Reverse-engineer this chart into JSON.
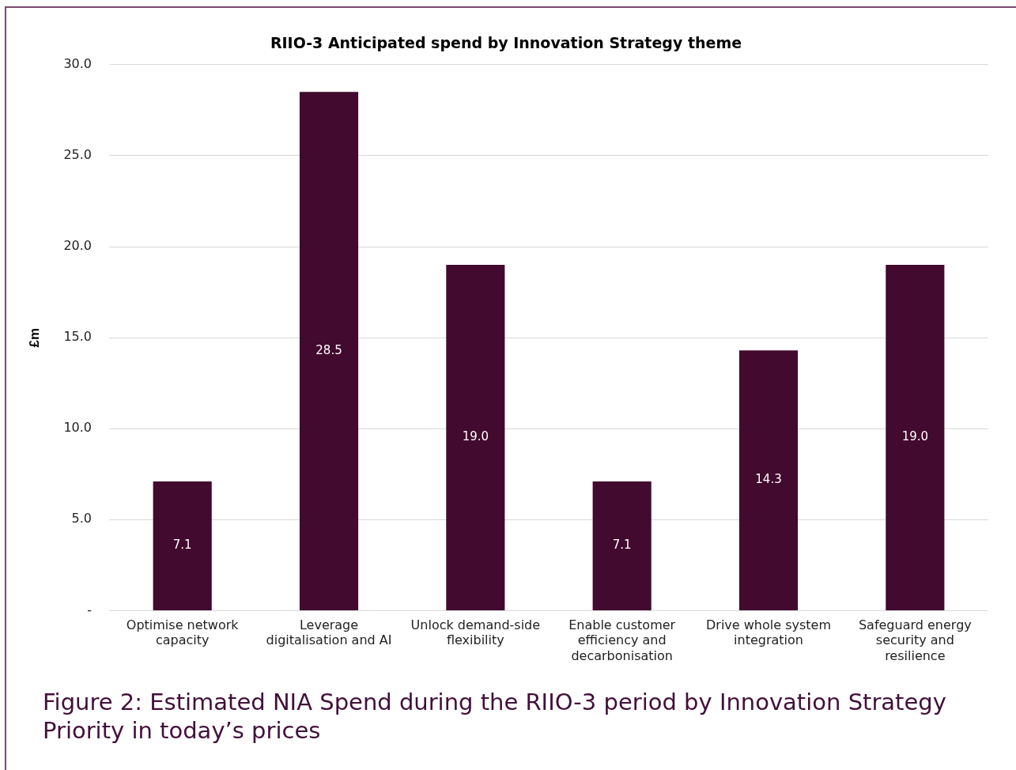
{
  "chart_data": {
    "type": "bar",
    "title": "RIIO-3 Anticipated spend by Innovation Strategy theme",
    "ylabel": "£m",
    "categories": [
      "Optimise network capacity",
      "Leverage digitalisation and AI",
      "Unlock demand-side flexibility",
      "Enable customer efficiency and decarbonisation",
      "Drive whole system integration",
      "Safeguard energy security and resilience"
    ],
    "values": [
      7.1,
      28.5,
      19.0,
      7.1,
      14.3,
      19.0
    ],
    "value_labels": [
      "7.1",
      "28.5",
      "19.0",
      "7.1",
      "14.3",
      "19.0"
    ],
    "color": "#420a2e",
    "ylim": [
      0,
      30
    ],
    "yticks": [
      {
        "value": 0,
        "label": "-"
      },
      {
        "value": 5,
        "label": "5.0"
      },
      {
        "value": 10,
        "label": "10.0"
      },
      {
        "value": 15,
        "label": "15.0"
      },
      {
        "value": 20,
        "label": "20.0"
      },
      {
        "value": 25,
        "label": "25.0"
      },
      {
        "value": 30,
        "label": "30.0"
      }
    ],
    "grid": "y",
    "legend": false,
    "annotations": [
      "Figure 2:  Estimated NIA Spend during the RIIO-3 period by Innovation Strategy Priority in today’s prices"
    ]
  }
}
